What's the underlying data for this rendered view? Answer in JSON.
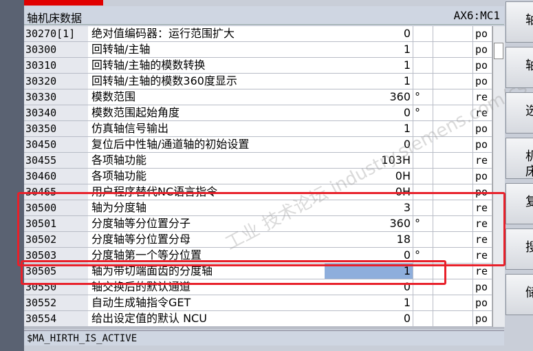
{
  "header": {
    "title": "轴机床数据",
    "axis": "AX6:MC1"
  },
  "rows": [
    {
      "id": "30270[1]",
      "name": "绝对值编码器：运行范围扩大",
      "value": "0",
      "type": "po"
    },
    {
      "id": "30300",
      "name": "回转轴/主轴",
      "value": "1",
      "type": "po"
    },
    {
      "id": "30310",
      "name": "回转轴/主轴的模数转换",
      "value": "1",
      "type": "po"
    },
    {
      "id": "30320",
      "name": "回转轴/主轴的模数360度显示",
      "value": "1",
      "type": "po"
    },
    {
      "id": "30330",
      "name": "模数范围",
      "value": "360",
      "unit": "°",
      "type": "re"
    },
    {
      "id": "30340",
      "name": "模数范围起始角度",
      "value": "0",
      "unit": "°",
      "type": "re"
    },
    {
      "id": "30350",
      "name": "仿真轴信号输出",
      "value": "1",
      "type": "po"
    },
    {
      "id": "30450",
      "name": "复位后中性轴/通道轴的初始设置",
      "value": "0",
      "type": "po"
    },
    {
      "id": "30455",
      "name": "各项轴功能",
      "value": "103H",
      "type": "re"
    },
    {
      "id": "30460",
      "name": "各项轴功能",
      "value": "0H",
      "type": "po"
    },
    {
      "id": "30465",
      "name": "用户程序替代NC语言指令",
      "value": "0H",
      "type": "po"
    },
    {
      "id": "30500",
      "name": "轴为分度轴",
      "value": "3",
      "type": "re"
    },
    {
      "id": "30501",
      "name": "分度轴等分位置分子",
      "value": "360",
      "unit": "°",
      "type": "re"
    },
    {
      "id": "30502",
      "name": "分度轴等分位置分母",
      "value": "18",
      "type": "re"
    },
    {
      "id": "30503",
      "name": "分度轴第一个等分位置",
      "value": "0",
      "unit": "°",
      "type": "re"
    },
    {
      "id": "30505",
      "name": "轴为带切端面齿的分度轴",
      "value": "1",
      "type": "re"
    },
    {
      "id": "30550",
      "name": "轴交换后的默认通道",
      "value": "0",
      "type": "po"
    },
    {
      "id": "30552",
      "name": "自动生成轴指令GET",
      "value": "1",
      "type": "po"
    },
    {
      "id": "30554",
      "name": "给出设定值的默认 NCU",
      "value": "0",
      "type": "po"
    }
  ],
  "status": "$MA_HIRTH_IS_ACTIVE",
  "watermark": "工业 技术论坛 industry.siemens.com/cs",
  "softkeys": [
    "轴",
    "轴",
    "选",
    "机床",
    "复",
    "搜",
    "储"
  ]
}
